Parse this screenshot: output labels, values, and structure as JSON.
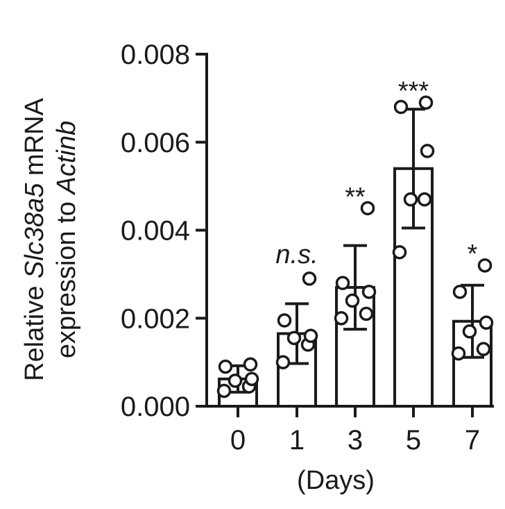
{
  "chart_data": {
    "type": "bar",
    "categories": [
      "0",
      "1",
      "3",
      "5",
      "7"
    ],
    "xlabel": "(Days)",
    "ylabel": {
      "part1": "Relative ",
      "gene": "Slc38a5",
      "part2": " mRNA",
      "line2_part1": "expression to ",
      "ref_gene": "Actinb"
    },
    "ylim": [
      0,
      0.008
    ],
    "yticks": [
      "0.000",
      "0.002",
      "0.004",
      "0.006",
      "0.008"
    ],
    "ytick_values": [
      0,
      0.002,
      0.004,
      0.006,
      0.008
    ],
    "values": [
      0.00062,
      0.00165,
      0.0027,
      0.0054,
      0.00193
    ],
    "error": [
      0.0003,
      0.00068,
      0.00095,
      0.00135,
      0.00082
    ],
    "points": [
      [
        0.00035,
        0.00045,
        0.00058,
        0.00062,
        0.0009,
        0.00095
      ],
      [
        0.001,
        0.0014,
        0.00155,
        0.0016,
        0.00195,
        0.0029
      ],
      [
        0.002,
        0.0021,
        0.0024,
        0.0026,
        0.0028,
        0.0045
      ],
      [
        0.0035,
        0.0047,
        0.0047,
        0.0058,
        0.0068,
        0.0069
      ],
      [
        0.0012,
        0.0013,
        0.0017,
        0.0019,
        0.0026,
        0.0032
      ]
    ],
    "significance": [
      "",
      "n.s.",
      "**",
      "***",
      "*"
    ],
    "grid": false,
    "legend": false,
    "bar_fill": "#ffffff",
    "stroke_color": "#1a1a1a"
  }
}
